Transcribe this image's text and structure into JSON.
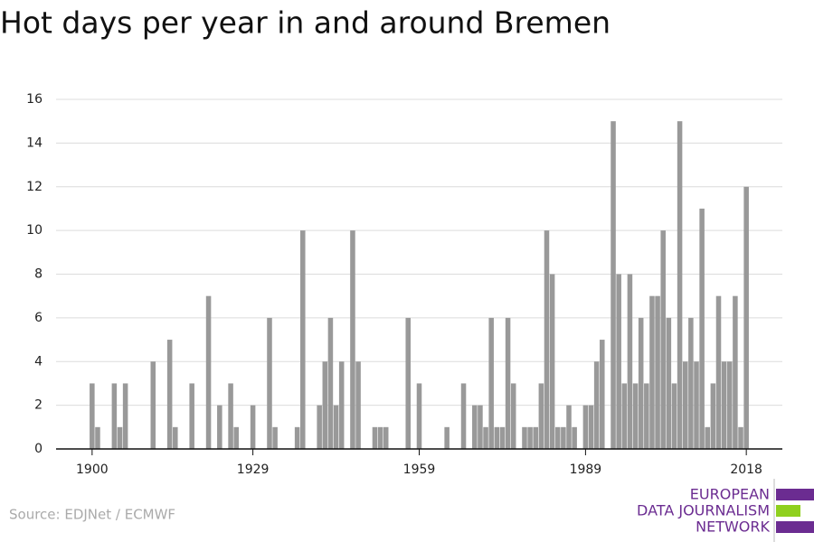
{
  "chart_data": {
    "type": "bar",
    "title": "Hot days per year in and around Bremen",
    "source": "Source: EDJNet / ECMWF",
    "logo": [
      "EUROPEAN",
      "DATA JOURNALISM",
      "NETWORK"
    ],
    "color": "#999999",
    "x": [
      1900,
      1901,
      1902,
      1903,
      1904,
      1905,
      1906,
      1907,
      1908,
      1909,
      1910,
      1911,
      1912,
      1913,
      1914,
      1915,
      1916,
      1917,
      1918,
      1919,
      1920,
      1921,
      1922,
      1923,
      1924,
      1925,
      1926,
      1927,
      1928,
      1929,
      1930,
      1931,
      1932,
      1933,
      1934,
      1935,
      1936,
      1937,
      1938,
      1939,
      1940,
      1941,
      1942,
      1943,
      1944,
      1945,
      1946,
      1947,
      1948,
      1949,
      1950,
      1951,
      1952,
      1953,
      1954,
      1955,
      1956,
      1957,
      1958,
      1959,
      1960,
      1961,
      1962,
      1963,
      1964,
      1965,
      1966,
      1967,
      1968,
      1969,
      1970,
      1971,
      1972,
      1973,
      1974,
      1975,
      1976,
      1977,
      1978,
      1979,
      1980,
      1981,
      1982,
      1983,
      1984,
      1985,
      1986,
      1987,
      1988,
      1989,
      1990,
      1991,
      1992,
      1993,
      1994,
      1995,
      1996,
      1997,
      1998,
      1999,
      2000,
      2001,
      2002,
      2003,
      2004,
      2005,
      2006,
      2007,
      2008,
      2009,
      2010,
      2011,
      2012,
      2013,
      2014,
      2015,
      2016,
      2017,
      2018
    ],
    "values": [
      3,
      1,
      0,
      0,
      3,
      1,
      3,
      0,
      0,
      0,
      0,
      4,
      0,
      0,
      5,
      1,
      0,
      0,
      3,
      0,
      0,
      7,
      0,
      2,
      0,
      3,
      1,
      0,
      0,
      2,
      0,
      0,
      6,
      1,
      0,
      0,
      0,
      1,
      10,
      0,
      0,
      2,
      4,
      6,
      2,
      4,
      0,
      10,
      4,
      0,
      0,
      1,
      1,
      1,
      0,
      0,
      0,
      6,
      0,
      3,
      0,
      0,
      0,
      0,
      1,
      0,
      0,
      3,
      0,
      2,
      2,
      1,
      6,
      1,
      1,
      6,
      3,
      0,
      1,
      1,
      1,
      3,
      10,
      8,
      1,
      1,
      2,
      1,
      0,
      2,
      2,
      4,
      5,
      0,
      15,
      8,
      3,
      8,
      3,
      6,
      3,
      7,
      7,
      10,
      6,
      3,
      15,
      4,
      6,
      4,
      11,
      1,
      3,
      7,
      4,
      4,
      7,
      1,
      12
    ],
    "xlim": [
      1893.5,
      2024.5
    ],
    "xticks": [
      1900,
      1929,
      1959,
      1989,
      2018
    ],
    "ylim": [
      0,
      16
    ],
    "yticks": [
      0,
      2,
      4,
      6,
      8,
      10,
      12,
      14,
      16
    ],
    "grid": true
  }
}
